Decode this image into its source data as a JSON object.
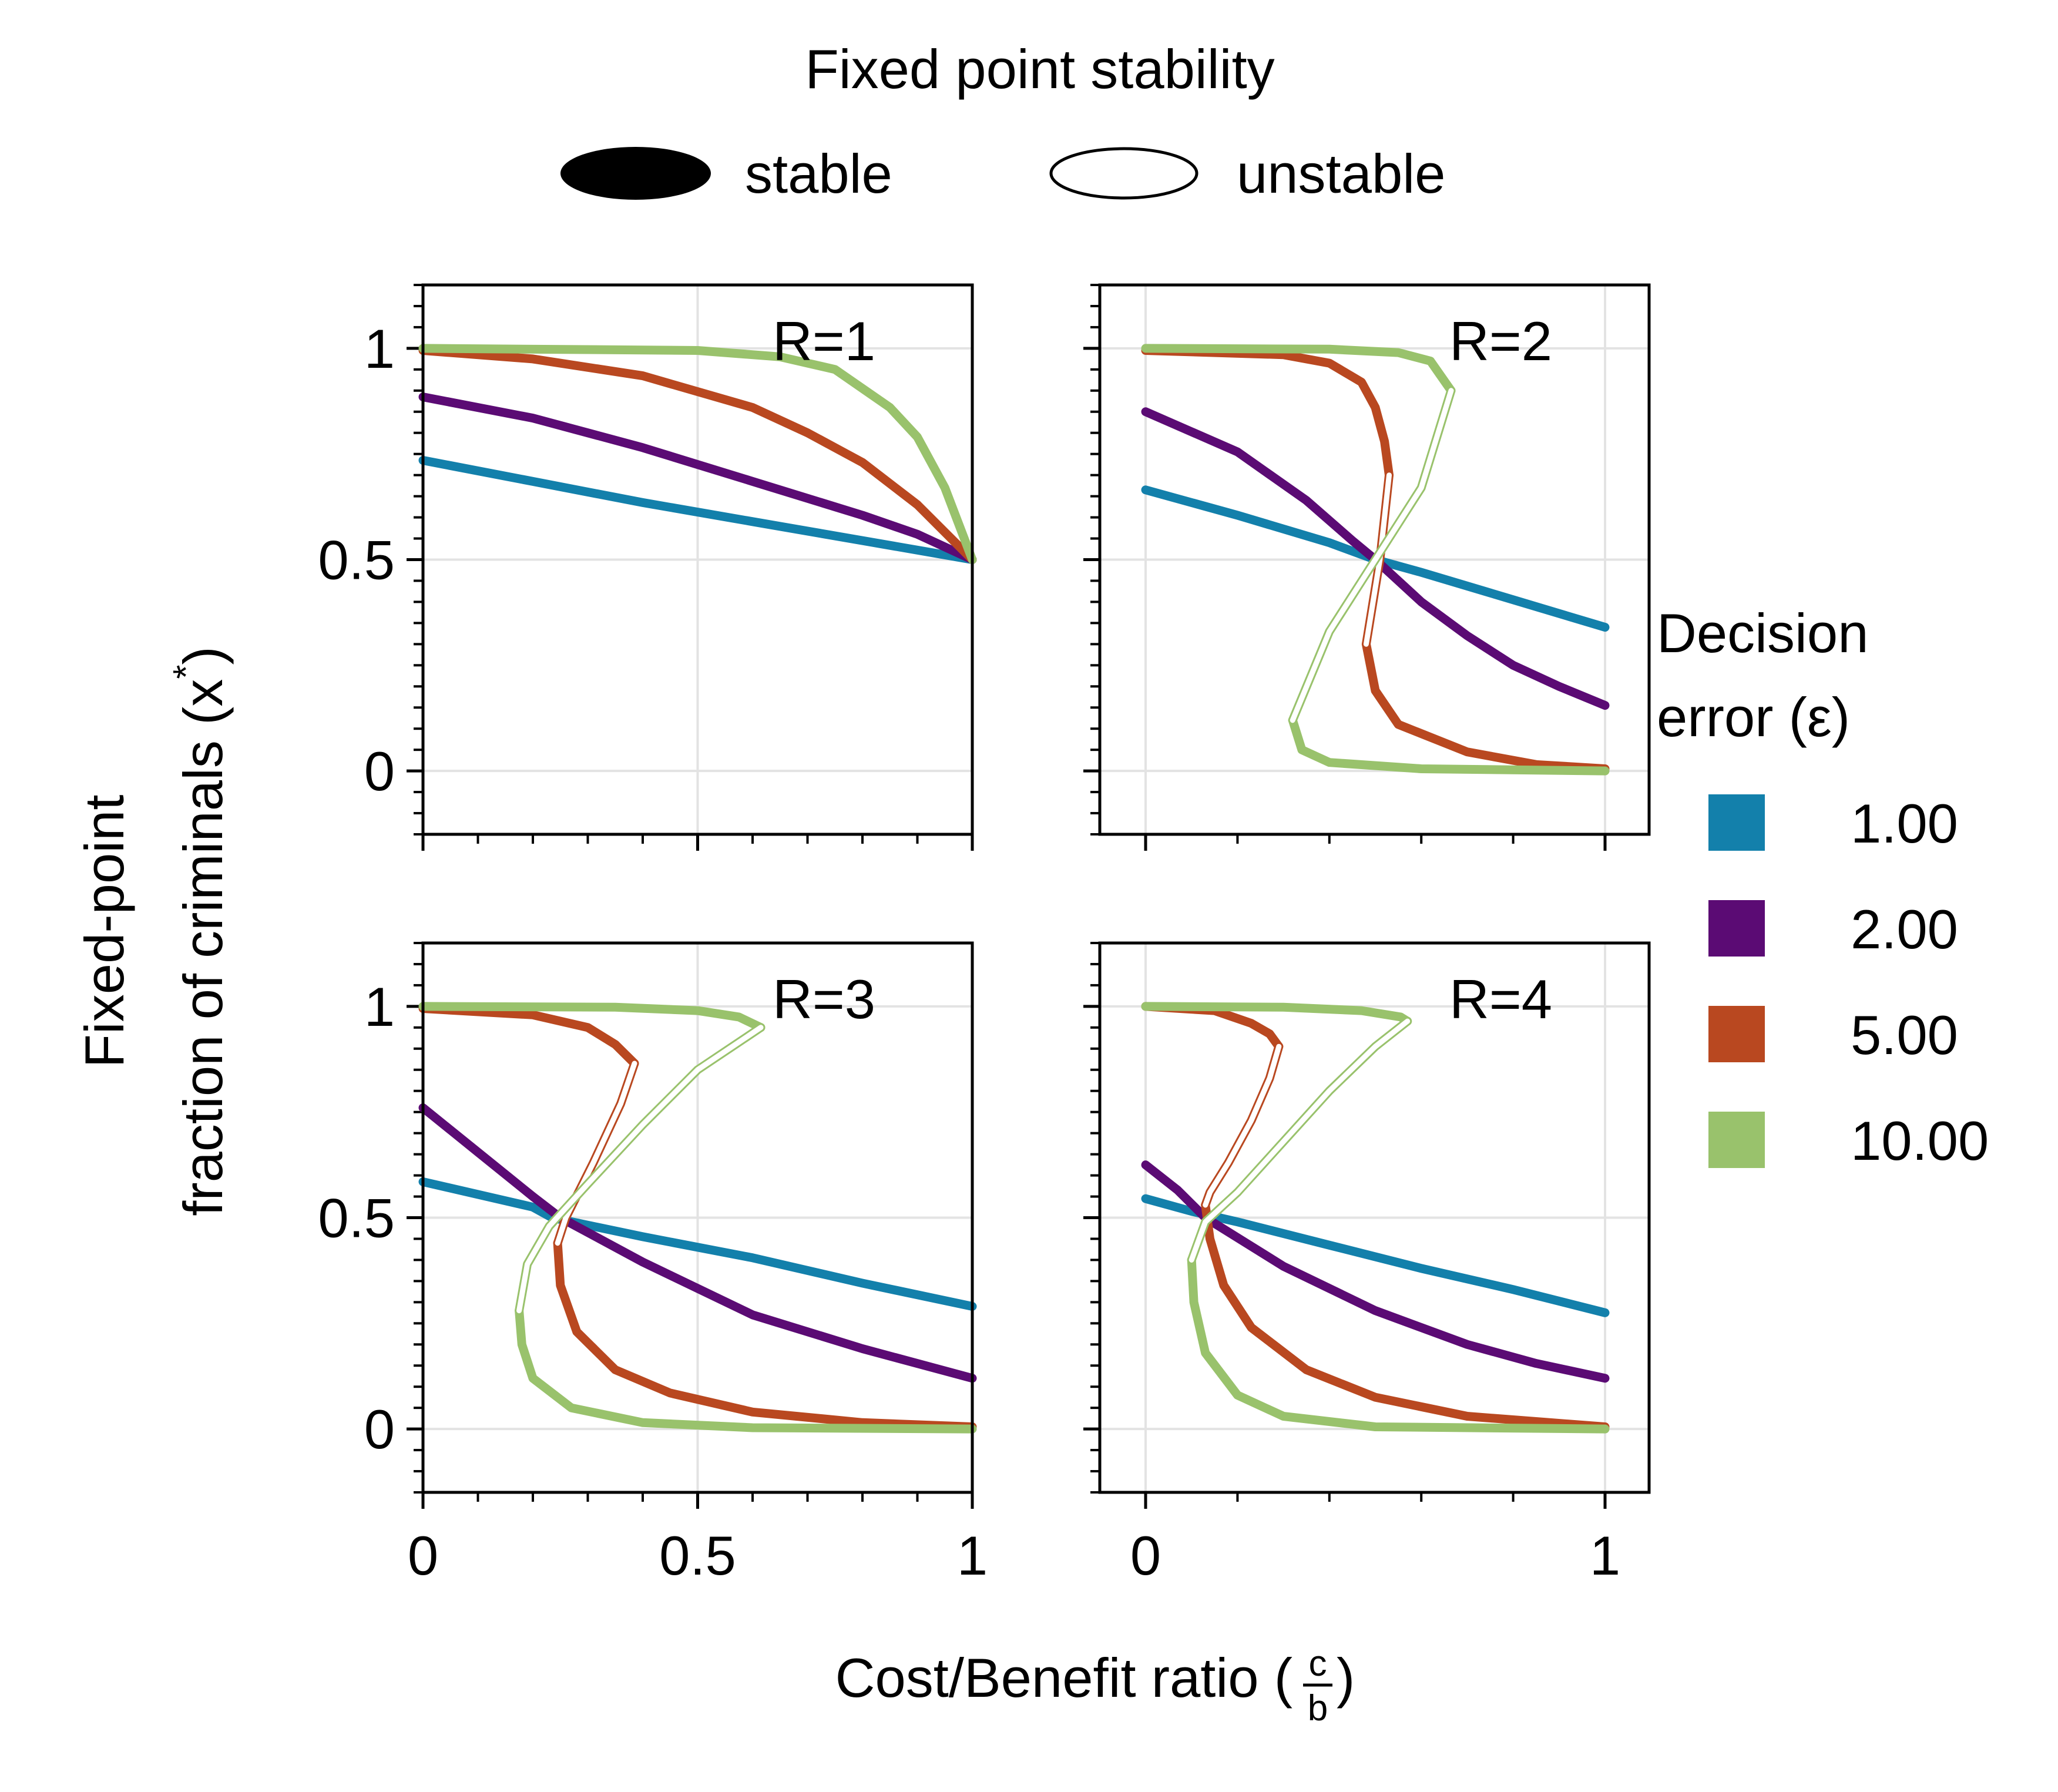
{
  "figure": {
    "stability_legend": {
      "title": "Fixed point stability",
      "stable_label": "stable",
      "unstable_label": "unstable"
    },
    "error_legend": {
      "title_line1": "Decision",
      "title_line2": "error (ε)"
    },
    "ylabel_line1": "Fixed-point",
    "ylabel_line2": "fraction of criminals (x",
    "ylabel_sup": "*",
    "ylabel_close": ")",
    "xlabel": "Cost/Benefit ratio (",
    "xlabel_num": "c",
    "xlabel_den": "b",
    "xlabel_close": ")"
  },
  "chart_data": {
    "type": "line",
    "xlim": [
      0,
      1
    ],
    "ylim": [
      -0.15,
      1.15
    ],
    "y_ticks": [
      "0",
      "0.5",
      "1"
    ],
    "x_ticks_left": [
      "0",
      "0.5",
      "1"
    ],
    "x_ticks_right": [
      "0",
      "1"
    ],
    "grid": true,
    "epsilons": [
      {
        "label": "1.00",
        "color": "#1380AB"
      },
      {
        "label": "2.00",
        "color": "#5B0B74"
      },
      {
        "label": "5.00",
        "color": "#B94820"
      },
      {
        "label": "10.00",
        "color": "#99C26C"
      }
    ],
    "panels": [
      {
        "label": "R=1",
        "x_domain": [
          0,
          1
        ],
        "series": [
          {
            "epsilon": "1.00",
            "stable": [
              [
                [
                  0,
                  0.735
                ],
                [
                  0.2,
                  0.685
                ],
                [
                  0.4,
                  0.635
                ],
                [
                  0.6,
                  0.59
                ],
                [
                  0.8,
                  0.545
                ],
                [
                  1,
                  0.5
                ]
              ]
            ],
            "unstable": []
          },
          {
            "epsilon": "2.00",
            "stable": [
              [
                [
                  0,
                  0.885
                ],
                [
                  0.2,
                  0.835
                ],
                [
                  0.4,
                  0.765
                ],
                [
                  0.6,
                  0.685
                ],
                [
                  0.8,
                  0.605
                ],
                [
                  0.9,
                  0.56
                ],
                [
                  1,
                  0.5
                ]
              ]
            ],
            "unstable": []
          },
          {
            "epsilon": "5.00",
            "stable": [
              [
                [
                  0,
                  0.995
                ],
                [
                  0.2,
                  0.975
                ],
                [
                  0.4,
                  0.935
                ],
                [
                  0.6,
                  0.86
                ],
                [
                  0.7,
                  0.8
                ],
                [
                  0.8,
                  0.73
                ],
                [
                  0.9,
                  0.63
                ],
                [
                  1,
                  0.5
                ]
              ]
            ],
            "unstable": []
          },
          {
            "epsilon": "10.00",
            "stable": [
              [
                [
                  0,
                  1
                ],
                [
                  0.5,
                  0.995
                ],
                [
                  0.65,
                  0.98
                ],
                [
                  0.75,
                  0.95
                ],
                [
                  0.85,
                  0.86
                ],
                [
                  0.9,
                  0.79
                ],
                [
                  0.95,
                  0.67
                ],
                [
                  1,
                  0.5
                ]
              ]
            ],
            "unstable": []
          }
        ]
      },
      {
        "label": "R=2",
        "x_domain": [
          0,
          1
        ],
        "series": [
          {
            "epsilon": "1.00",
            "stable": [
              [
                [
                  0,
                  0.665
                ],
                [
                  0.2,
                  0.605
                ],
                [
                  0.4,
                  0.54
                ],
                [
                  0.5,
                  0.5
                ],
                [
                  0.6,
                  0.47
                ],
                [
                  0.8,
                  0.405
                ],
                [
                  1,
                  0.34
                ]
              ]
            ],
            "unstable": []
          },
          {
            "epsilon": "2.00",
            "stable": [
              [
                [
                  0,
                  0.85
                ],
                [
                  0.2,
                  0.755
                ],
                [
                  0.35,
                  0.64
                ],
                [
                  0.45,
                  0.545
                ],
                [
                  0.5,
                  0.5
                ],
                [
                  0.6,
                  0.4
                ],
                [
                  0.7,
                  0.32
                ],
                [
                  0.8,
                  0.25
                ],
                [
                  0.9,
                  0.2
                ],
                [
                  1,
                  0.155
                ]
              ]
            ],
            "unstable": []
          },
          {
            "epsilon": "5.00",
            "stable": [
              [
                [
                  0,
                  0.995
                ],
                [
                  0.3,
                  0.985
                ],
                [
                  0.4,
                  0.965
                ],
                [
                  0.47,
                  0.92
                ],
                [
                  0.5,
                  0.86
                ],
                [
                  0.52,
                  0.78
                ],
                [
                  0.53,
                  0.7
                ]
              ],
              [
                [
                  0.48,
                  0.3
                ],
                [
                  0.5,
                  0.19
                ],
                [
                  0.55,
                  0.11
                ],
                [
                  0.7,
                  0.045
                ],
                [
                  0.85,
                  0.015
                ],
                [
                  1,
                  0.005
                ]
              ]
            ],
            "unstable": [
              [
                [
                  0.53,
                  0.7
                ],
                [
                  0.51,
                  0.5
                ],
                [
                  0.48,
                  0.3
                ]
              ]
            ]
          },
          {
            "epsilon": "10.00",
            "stable": [
              [
                [
                  0,
                  1
                ],
                [
                  0.4,
                  0.998
                ],
                [
                  0.55,
                  0.99
                ],
                [
                  0.62,
                  0.97
                ],
                [
                  0.665,
                  0.9
                ]
              ],
              [
                [
                  0.32,
                  0.12
                ],
                [
                  0.34,
                  0.05
                ],
                [
                  0.4,
                  0.02
                ],
                [
                  0.6,
                  0.005
                ],
                [
                  1,
                  0
                ]
              ]
            ],
            "unstable": [
              [
                [
                  0.665,
                  0.9
                ],
                [
                  0.6,
                  0.67
                ],
                [
                  0.5,
                  0.5
                ],
                [
                  0.4,
                  0.33
                ],
                [
                  0.32,
                  0.12
                ]
              ]
            ]
          }
        ]
      },
      {
        "label": "R=3",
        "x_domain": [
          0,
          1
        ],
        "series": [
          {
            "epsilon": "1.00",
            "stable": [
              [
                [
                  0,
                  0.585
                ],
                [
                  0.2,
                  0.525
                ],
                [
                  0.235,
                  0.5
                ],
                [
                  0.4,
                  0.455
                ],
                [
                  0.6,
                  0.405
                ],
                [
                  0.8,
                  0.345
                ],
                [
                  1,
                  0.29
                ]
              ]
            ],
            "unstable": []
          },
          {
            "epsilon": "2.00",
            "stable": [
              [
                [
                  0,
                  0.76
                ],
                [
                  0.1,
                  0.655
                ],
                [
                  0.2,
                  0.55
                ],
                [
                  0.25,
                  0.5
                ],
                [
                  0.4,
                  0.395
                ],
                [
                  0.6,
                  0.27
                ],
                [
                  0.8,
                  0.19
                ],
                [
                  1,
                  0.12
                ]
              ]
            ],
            "unstable": []
          },
          {
            "epsilon": "5.00",
            "stable": [
              [
                [
                  0,
                  0.995
                ],
                [
                  0.2,
                  0.98
                ],
                [
                  0.3,
                  0.95
                ],
                [
                  0.35,
                  0.91
                ],
                [
                  0.385,
                  0.865
                ]
              ],
              [
                [
                  0.245,
                  0.44
                ],
                [
                  0.25,
                  0.34
                ],
                [
                  0.28,
                  0.23
                ],
                [
                  0.35,
                  0.14
                ],
                [
                  0.45,
                  0.085
                ],
                [
                  0.6,
                  0.04
                ],
                [
                  0.8,
                  0.015
                ],
                [
                  1,
                  0.005
                ]
              ]
            ],
            "unstable": [
              [
                [
                  0.385,
                  0.865
                ],
                [
                  0.36,
                  0.77
                ],
                [
                  0.31,
                  0.63
                ],
                [
                  0.26,
                  0.5
                ],
                [
                  0.245,
                  0.44
                ]
              ]
            ]
          },
          {
            "epsilon": "10.00",
            "stable": [
              [
                [
                  0,
                  1
                ],
                [
                  0.35,
                  0.998
                ],
                [
                  0.5,
                  0.99
                ],
                [
                  0.575,
                  0.975
                ],
                [
                  0.615,
                  0.95
                ]
              ],
              [
                [
                  0.175,
                  0.28
                ],
                [
                  0.18,
                  0.2
                ],
                [
                  0.2,
                  0.12
                ],
                [
                  0.27,
                  0.05
                ],
                [
                  0.4,
                  0.015
                ],
                [
                  0.6,
                  0.003
                ],
                [
                  1,
                  0
                ]
              ]
            ],
            "unstable": [
              [
                [
                  0.615,
                  0.95
                ],
                [
                  0.5,
                  0.85
                ],
                [
                  0.4,
                  0.72
                ],
                [
                  0.3,
                  0.58
                ],
                [
                  0.23,
                  0.48
                ],
                [
                  0.19,
                  0.39
                ],
                [
                  0.175,
                  0.28
                ]
              ]
            ]
          }
        ]
      },
      {
        "label": "R=4",
        "x_domain": [
          0,
          1
        ],
        "series": [
          {
            "epsilon": "1.00",
            "stable": [
              [
                [
                  0,
                  0.545
                ],
                [
                  0.1,
                  0.515
                ],
                [
                  0.2,
                  0.49
                ],
                [
                  0.4,
                  0.435
                ],
                [
                  0.6,
                  0.38
                ],
                [
                  0.8,
                  0.33
                ],
                [
                  1,
                  0.275
                ]
              ]
            ],
            "unstable": []
          },
          {
            "epsilon": "2.00",
            "stable": [
              [
                [
                  0,
                  0.625
                ],
                [
                  0.07,
                  0.565
                ],
                [
                  0.13,
                  0.5
                ],
                [
                  0.3,
                  0.385
                ],
                [
                  0.5,
                  0.28
                ],
                [
                  0.7,
                  0.2
                ],
                [
                  0.85,
                  0.155
                ],
                [
                  1,
                  0.12
                ]
              ]
            ],
            "unstable": []
          },
          {
            "epsilon": "5.00",
            "stable": [
              [
                [
                  0,
                  1
                ],
                [
                  0.15,
                  0.99
                ],
                [
                  0.23,
                  0.96
                ],
                [
                  0.27,
                  0.935
                ],
                [
                  0.29,
                  0.905
                ]
              ],
              [
                [
                  0.13,
                  0.53
                ],
                [
                  0.14,
                  0.45
                ],
                [
                  0.17,
                  0.34
                ],
                [
                  0.23,
                  0.24
                ],
                [
                  0.35,
                  0.14
                ],
                [
                  0.5,
                  0.075
                ],
                [
                  0.7,
                  0.03
                ],
                [
                  1,
                  0.005
                ]
              ]
            ],
            "unstable": [
              [
                [
                  0.29,
                  0.905
                ],
                [
                  0.27,
                  0.83
                ],
                [
                  0.23,
                  0.73
                ],
                [
                  0.18,
                  0.63
                ],
                [
                  0.14,
                  0.56
                ],
                [
                  0.13,
                  0.53
                ]
              ]
            ]
          },
          {
            "epsilon": "10.00",
            "stable": [
              [
                [
                  0,
                  1
                ],
                [
                  0.3,
                  0.998
                ],
                [
                  0.47,
                  0.99
                ],
                [
                  0.555,
                  0.975
                ],
                [
                  0.57,
                  0.965
                ]
              ],
              [
                [
                  0.1,
                  0.4
                ],
                [
                  0.105,
                  0.3
                ],
                [
                  0.13,
                  0.18
                ],
                [
                  0.2,
                  0.08
                ],
                [
                  0.3,
                  0.03
                ],
                [
                  0.5,
                  0.005
                ],
                [
                  1,
                  0
                ]
              ]
            ],
            "unstable": [
              [
                [
                  0.57,
                  0.965
                ],
                [
                  0.5,
                  0.905
                ],
                [
                  0.4,
                  0.8
                ],
                [
                  0.3,
                  0.68
                ],
                [
                  0.2,
                  0.56
                ],
                [
                  0.13,
                  0.49
                ],
                [
                  0.1,
                  0.4
                ]
              ]
            ]
          }
        ]
      }
    ]
  }
}
